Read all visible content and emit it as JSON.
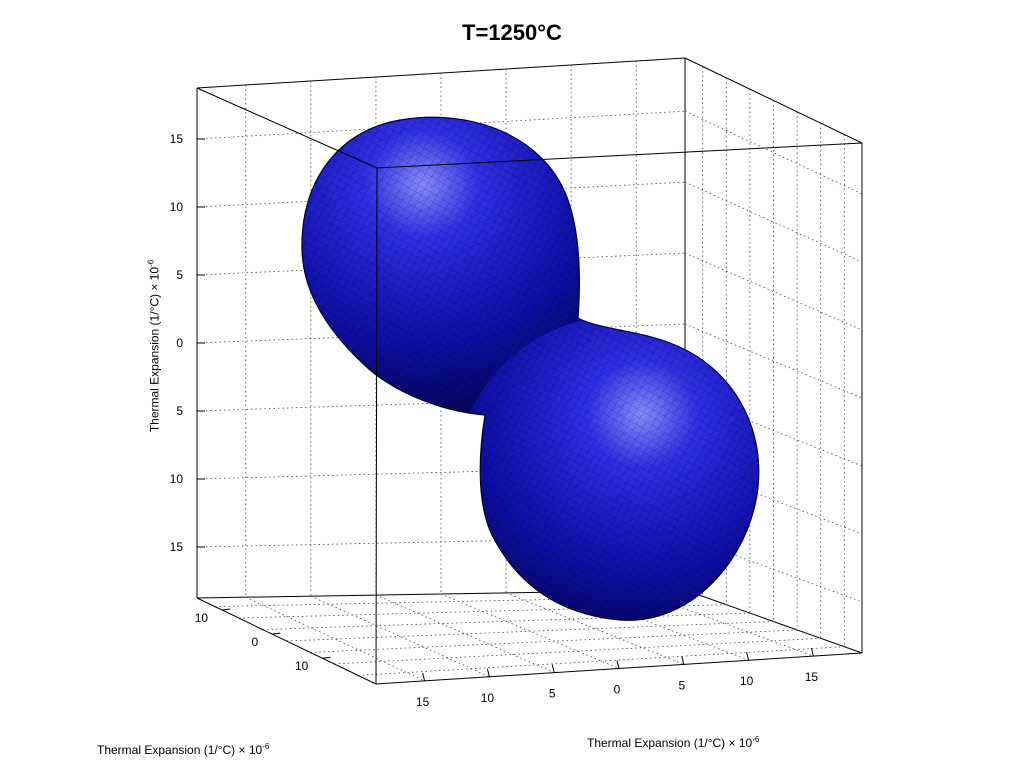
{
  "chart_data": {
    "type": "surface3d",
    "title": "T=1250°C",
    "axis_label_base": "Thermal Expansion (1/°C) × 10",
    "axis_label_exp": "-6",
    "surface_color": "#1010b0",
    "grid": true,
    "box": true,
    "z_ticks": [
      "15",
      "10",
      "5",
      "0",
      "5",
      "10",
      "15"
    ],
    "x_ticks": [
      "10",
      "0",
      "10"
    ],
    "y_ticks": [
      "15",
      "10",
      "5",
      "0",
      "5",
      "10",
      "15"
    ],
    "shape": "peanut-shaped thermal expansion surface with two lobes along a diagonal"
  }
}
